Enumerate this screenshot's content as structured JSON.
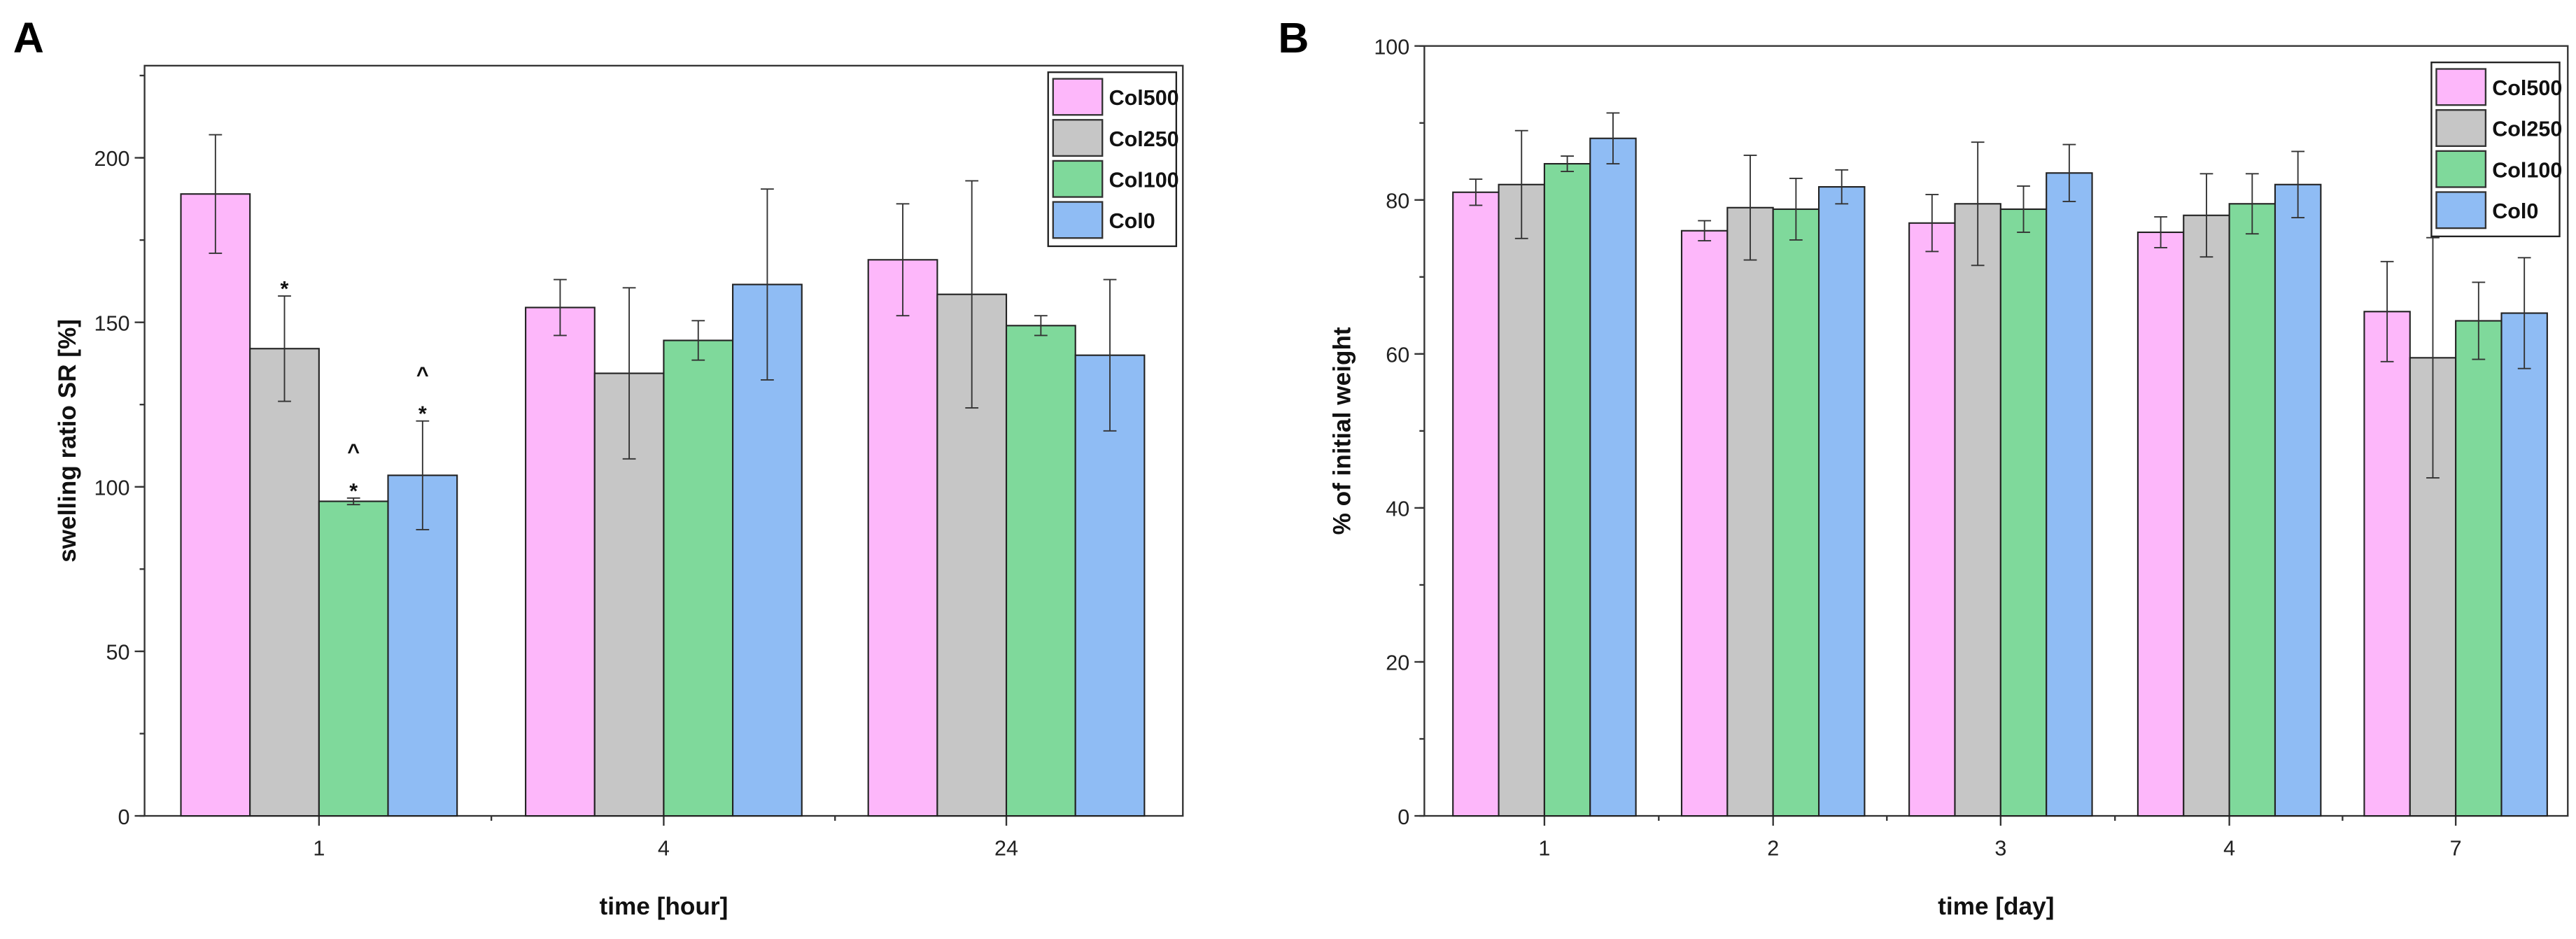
{
  "colors": {
    "Col500": "#fdb7fa",
    "Col250": "#c6c6c6",
    "Col100": "#7fd99b",
    "Col0": "#8fbcf4"
  },
  "chart_data": [
    {
      "type": "bar",
      "panel": "A",
      "title": "",
      "xlabel": "time [hour]",
      "ylabel": "swelling ratio SR [%]",
      "categories": [
        "1",
        "4",
        "24"
      ],
      "ylim": [
        0,
        228
      ],
      "yticks": [
        0,
        50,
        100,
        150,
        200
      ],
      "legend": "top-right",
      "series": [
        {
          "name": "Col500",
          "values": [
            189,
            154.5,
            169
          ],
          "errors": [
            18,
            8.5,
            17
          ]
        },
        {
          "name": "Col250",
          "values": [
            142,
            134.5,
            158.5
          ],
          "errors": [
            16,
            26,
            34.5
          ]
        },
        {
          "name": "Col100",
          "values": [
            95.6,
            144.5,
            149
          ],
          "errors": [
            1,
            6,
            3
          ]
        },
        {
          "name": "Col0",
          "values": [
            103.5,
            161.5,
            140
          ],
          "errors": [
            16.5,
            29,
            23
          ]
        }
      ],
      "annotations": [
        {
          "category": "1",
          "series": "Col250",
          "marks": [
            "*"
          ]
        },
        {
          "category": "1",
          "series": "Col100",
          "marks": [
            "*",
            "^"
          ]
        },
        {
          "category": "1",
          "series": "Col0",
          "marks": [
            "*",
            "^"
          ]
        }
      ]
    },
    {
      "type": "bar",
      "panel": "B",
      "title": "",
      "xlabel": "time [day]",
      "ylabel": "% of initial weight",
      "categories": [
        "1",
        "2",
        "3",
        "4",
        "7"
      ],
      "ylim": [
        0,
        100
      ],
      "yticks": [
        0,
        20,
        40,
        60,
        80,
        100
      ],
      "legend": "top-right",
      "series": [
        {
          "name": "Col500",
          "values": [
            81,
            76,
            77,
            75.8,
            65.5
          ],
          "errors": [
            1.7,
            1.3,
            3.7,
            2,
            6.5
          ]
        },
        {
          "name": "Col250",
          "values": [
            82,
            79,
            79.5,
            78,
            59.5
          ],
          "errors": [
            7,
            6.8,
            8,
            5.4,
            15.6
          ]
        },
        {
          "name": "Col100",
          "values": [
            84.7,
            78.8,
            78.8,
            79.5,
            64.3
          ],
          "errors": [
            1,
            4,
            3,
            3.9,
            5
          ]
        },
        {
          "name": "Col0",
          "values": [
            88,
            81.7,
            83.5,
            82,
            65.3
          ],
          "errors": [
            3.3,
            2.2,
            3.7,
            4.3,
            7.2
          ]
        }
      ],
      "annotations": []
    }
  ]
}
